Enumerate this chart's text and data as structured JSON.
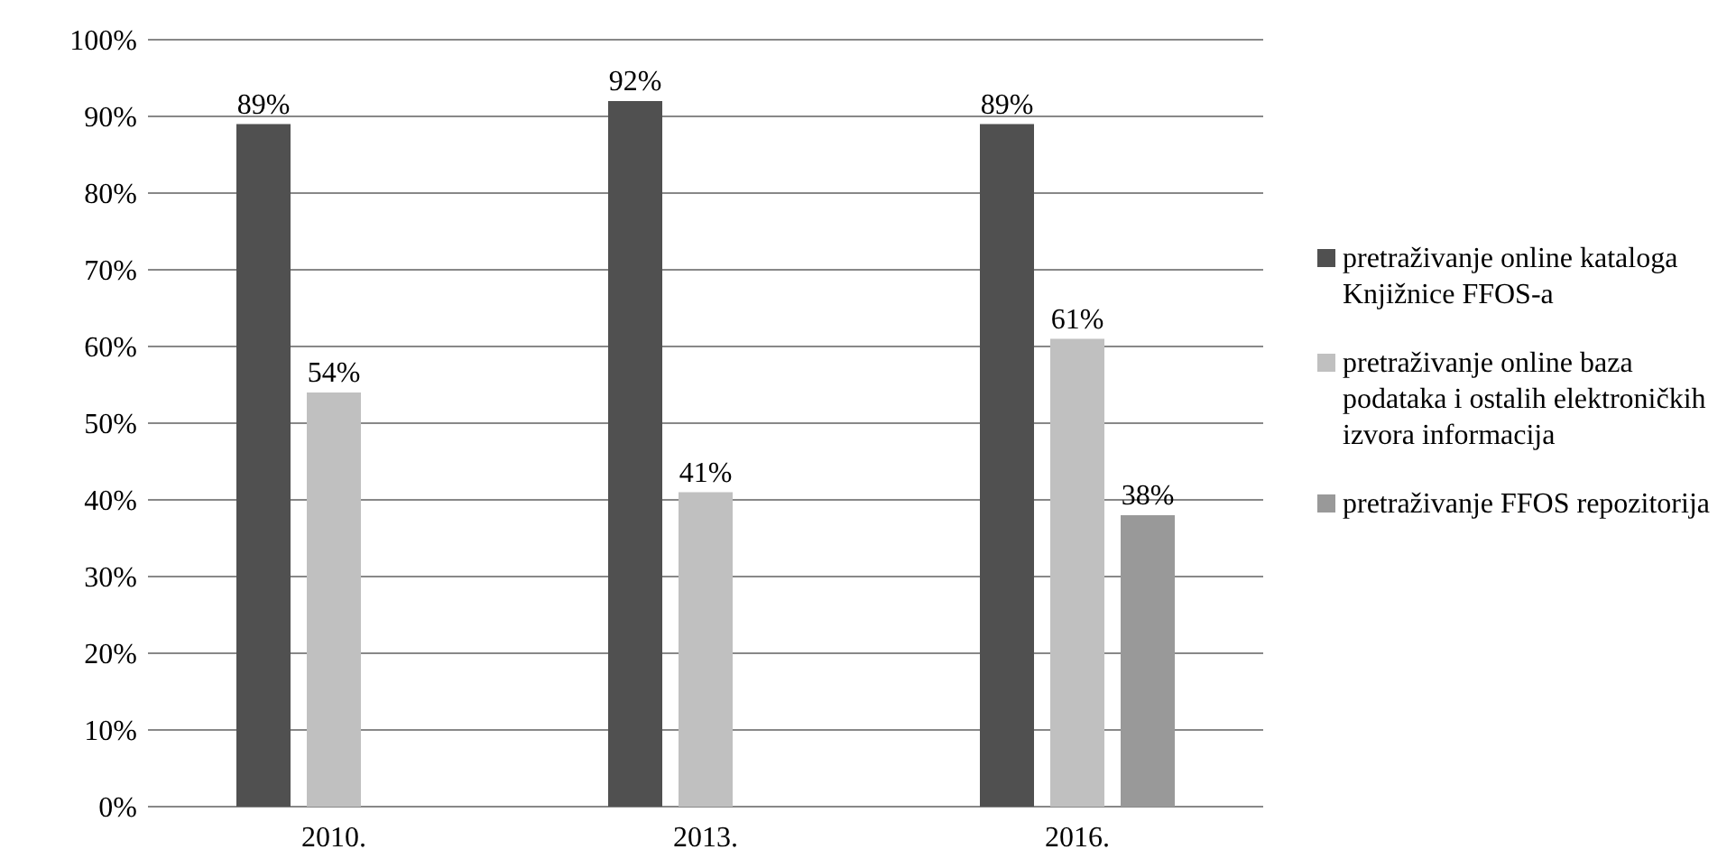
{
  "chart_data": {
    "type": "bar",
    "categories": [
      "2010.",
      "2013.",
      "2016."
    ],
    "series": [
      {
        "name": "pretraživanje online kataloga Knjižnice FFOS-a",
        "color": "#505050",
        "values": [
          89,
          92,
          89
        ],
        "value_labels": [
          "89%",
          "92%",
          "89%"
        ]
      },
      {
        "name": "pretraživanje online baza podataka i ostalih elektroničkih izvora informacija",
        "color": "#c0c0c0",
        "values": [
          54,
          41,
          61
        ],
        "value_labels": [
          "54%",
          "41%",
          "61%"
        ]
      },
      {
        "name": "pretraživanje FFOS repozitorija",
        "color": "#999999",
        "values": [
          null,
          null,
          38
        ],
        "value_labels": [
          null,
          null,
          "38%"
        ]
      }
    ],
    "ylim": [
      0,
      100
    ],
    "yticks": [
      {
        "value": 0,
        "label": "0%"
      },
      {
        "value": 10,
        "label": "10%"
      },
      {
        "value": 20,
        "label": "20%"
      },
      {
        "value": 30,
        "label": "30%"
      },
      {
        "value": 40,
        "label": "40%"
      },
      {
        "value": 50,
        "label": "50%"
      },
      {
        "value": 60,
        "label": "60%"
      },
      {
        "value": 70,
        "label": "70%"
      },
      {
        "value": 80,
        "label": "80%"
      },
      {
        "value": 90,
        "label": "90%"
      },
      {
        "value": 100,
        "label": "100%"
      }
    ],
    "grid": "y",
    "legend": "right"
  }
}
